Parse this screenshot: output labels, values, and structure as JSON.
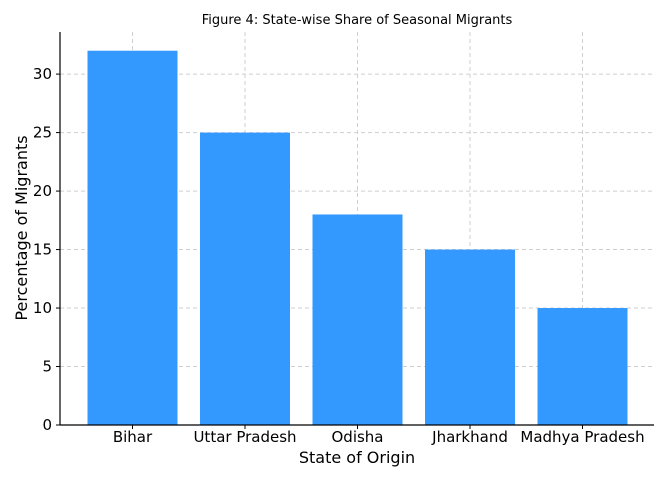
{
  "chart_data": {
    "type": "bar",
    "title": "Figure 4: State-wise Share of Seasonal Migrants",
    "xlabel": "State of Origin",
    "ylabel": "Percentage of Migrants",
    "categories": [
      "Bihar",
      "Uttar Pradesh",
      "Odisha",
      "Jharkhand",
      "Madhya Pradesh"
    ],
    "values": [
      32,
      25,
      18,
      15,
      10
    ],
    "ylim": [
      0,
      33.6
    ],
    "yticks": [
      0,
      5,
      10,
      15,
      20,
      25,
      30
    ],
    "grid": true,
    "bar_color": "#3399ff"
  }
}
